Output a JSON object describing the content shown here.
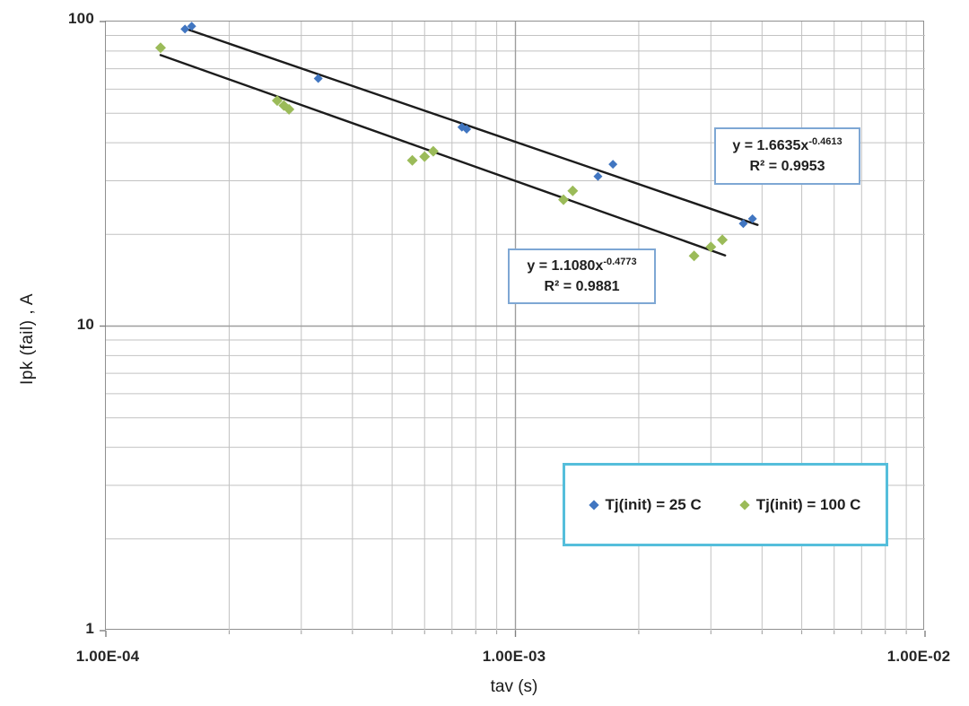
{
  "chart_data": {
    "type": "scatter",
    "title": "",
    "xlabel": "tav (s)",
    "ylabel": "Ipk (fail) ,  A",
    "x_scale": "log",
    "y_scale": "log",
    "xlim": [
      0.0001,
      0.01
    ],
    "ylim": [
      1,
      100
    ],
    "grid": {
      "on": true,
      "minor_color": "#c2c2c2",
      "major_color": "#9e9e9e",
      "border_color": "#8f8f8f"
    },
    "x_ticks": [
      {
        "value": 0.0001,
        "label": "1.00E-04"
      },
      {
        "value": 0.001,
        "label": "1.00E-03"
      },
      {
        "value": 0.01,
        "label": "1.00E-02"
      }
    ],
    "y_ticks": [
      {
        "value": 100,
        "label": "100"
      },
      {
        "value": 10,
        "label": "10"
      },
      {
        "value": 1,
        "label": "1"
      }
    ],
    "trendline_color": "#1c1c1c",
    "series": [
      {
        "name": "Tj(init) = 25 C",
        "color": "#4176c1",
        "marker": "diamond",
        "marker_size": 5,
        "points": [
          [
            0.000156,
            94.5
          ],
          [
            0.000162,
            96.5
          ],
          [
            0.00033,
            65
          ],
          [
            0.00074,
            45
          ],
          [
            0.00076,
            44.3
          ],
          [
            0.00159,
            31
          ],
          [
            0.00173,
            34
          ],
          [
            0.0036,
            21.7
          ],
          [
            0.00379,
            22.5
          ]
        ],
        "trend": {
          "a": 1.6635,
          "b": -0.4613,
          "x_range": [
            0.000156,
            0.0039
          ]
        }
      },
      {
        "name": "Tj(init) = 100 C",
        "color": "#9bbb59",
        "marker": "diamond",
        "marker_size": 6,
        "points": [
          [
            0.000136,
            82
          ],
          [
            0.000262,
            55
          ],
          [
            0.000272,
            53
          ],
          [
            0.00028,
            51.5
          ],
          [
            0.00056,
            35
          ],
          [
            0.0006,
            36
          ],
          [
            0.00063,
            37.5
          ],
          [
            0.00131,
            26
          ],
          [
            0.00138,
            27.8
          ],
          [
            0.00273,
            17
          ],
          [
            0.003,
            18.2
          ],
          [
            0.0032,
            19.2
          ]
        ],
        "trend": {
          "a": 1.108,
          "b": -0.4773,
          "x_range": [
            0.000136,
            0.00325
          ]
        }
      }
    ],
    "annotations": [
      {
        "eq_base": "y = 1.6635x",
        "eq_exp": "-0.4613",
        "r2": "R² = 0.9953"
      },
      {
        "eq_base": "y = 1.1080x",
        "eq_exp": "-0.4773",
        "r2": "R² = 0.9881"
      }
    ],
    "legend": {
      "position": "inside-bottom-right"
    }
  }
}
